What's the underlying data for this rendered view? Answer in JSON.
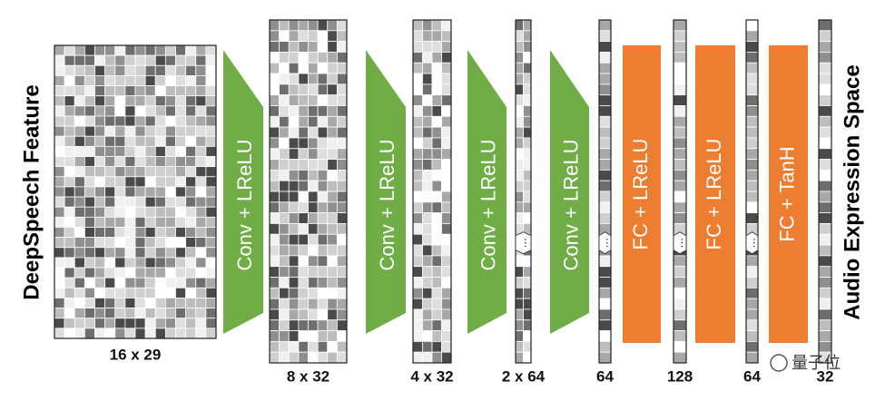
{
  "left_label": "DeepSpeech Feature",
  "right_label": "Audio Expression Space",
  "tensors": [
    {
      "label": "16 x 29"
    },
    {
      "label": "8 x 32"
    },
    {
      "label": "4 x 32"
    },
    {
      "label": "2 x 64"
    },
    {
      "label": "64"
    },
    {
      "label": "128"
    },
    {
      "label": "64"
    },
    {
      "label": "32"
    }
  ],
  "layers": [
    {
      "label": "Conv + LReLU"
    },
    {
      "label": "Conv + LReLU"
    },
    {
      "label": "Conv + LReLU"
    },
    {
      "label": "Conv + LReLU"
    },
    {
      "label": "FC + LReLU"
    },
    {
      "label": "FC + LReLU"
    },
    {
      "label": "FC + TanH"
    }
  ],
  "watermark": "量子位"
}
